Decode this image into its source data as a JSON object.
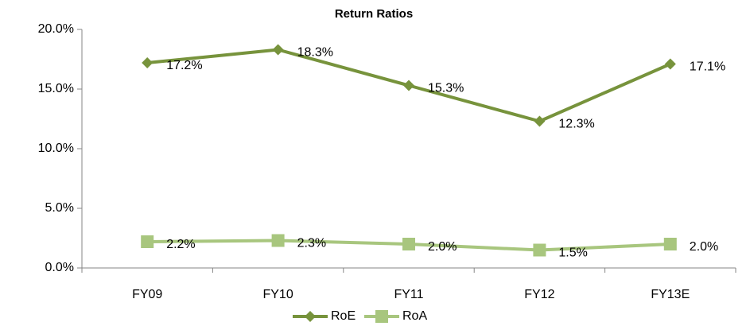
{
  "chart_data": {
    "type": "line",
    "title": "Return Ratios",
    "categories": [
      "FY09",
      "FY10",
      "FY11",
      "FY12",
      "FY13E"
    ],
    "series": [
      {
        "name": "RoE",
        "color": "#77933c",
        "marker": "diamond",
        "values": [
          17.2,
          18.3,
          15.3,
          12.3,
          17.1
        ],
        "value_labels": [
          "17.2%",
          "18.3%",
          "15.3%",
          "12.3%",
          "17.1%"
        ]
      },
      {
        "name": "RoA",
        "color": "#a8c67e",
        "marker": "square",
        "values": [
          2.2,
          2.3,
          2.0,
          1.5,
          2.0
        ],
        "value_labels": [
          "2.2%",
          "2.3%",
          "2.0%",
          "1.5%",
          "2.0%"
        ]
      }
    ],
    "ylim": [
      0,
      20
    ],
    "yticks": [
      {
        "value": 0,
        "label": "0.0%"
      },
      {
        "value": 5,
        "label": "5.0%"
      },
      {
        "value": 10,
        "label": "10.0%"
      },
      {
        "value": 15,
        "label": "15.0%"
      },
      {
        "value": 20,
        "label": "20.0%"
      }
    ],
    "grid": false,
    "legend": "bottom"
  }
}
